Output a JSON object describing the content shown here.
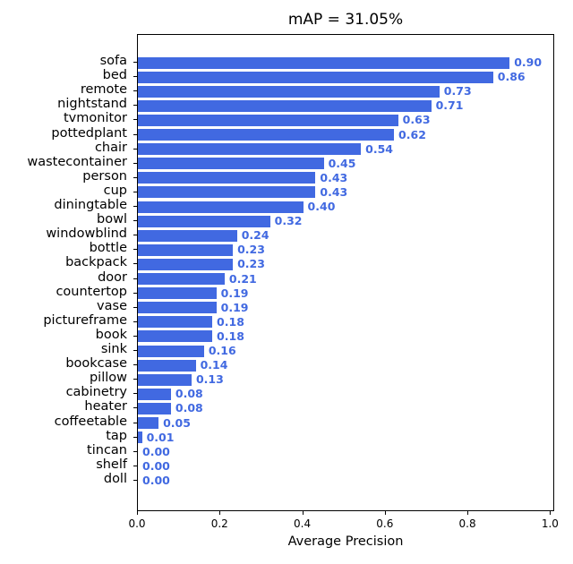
{
  "chart_data": {
    "type": "bar",
    "orientation": "horizontal",
    "title": "mAP = 31.05%",
    "xlabel": "Average Precision",
    "ylabel": "",
    "xlim": [
      0.0,
      1.01
    ],
    "xticks": [
      "0.0",
      "0.2",
      "0.4",
      "0.6",
      "0.8",
      "1.0"
    ],
    "grid": false,
    "legend": null,
    "bar_color": "#4169e1",
    "label_color": "#4169e1",
    "categories": [
      "sofa",
      "bed",
      "remote",
      "nightstand",
      "tvmonitor",
      "pottedplant",
      "chair",
      "wastecontainer",
      "person",
      "cup",
      "diningtable",
      "bowl",
      "windowblind",
      "bottle",
      "backpack",
      "door",
      "countertop",
      "vase",
      "pictureframe",
      "book",
      "sink",
      "bookcase",
      "pillow",
      "cabinetry",
      "heater",
      "coffeetable",
      "tap",
      "tincan",
      "shelf",
      "doll"
    ],
    "values": [
      0.9,
      0.86,
      0.73,
      0.71,
      0.63,
      0.62,
      0.54,
      0.45,
      0.43,
      0.43,
      0.4,
      0.32,
      0.24,
      0.23,
      0.23,
      0.21,
      0.19,
      0.19,
      0.18,
      0.18,
      0.16,
      0.14,
      0.13,
      0.08,
      0.08,
      0.05,
      0.01,
      0.0,
      0.0,
      0.0
    ],
    "value_labels": [
      "0.90",
      "0.86",
      "0.73",
      "0.71",
      "0.63",
      "0.62",
      "0.54",
      "0.45",
      "0.43",
      "0.43",
      "0.40",
      "0.32",
      "0.24",
      "0.23",
      "0.23",
      "0.21",
      "0.19",
      "0.19",
      "0.18",
      "0.18",
      "0.16",
      "0.14",
      "0.13",
      "0.08",
      "0.08",
      "0.05",
      "0.01",
      "0.00",
      "0.00",
      "0.00"
    ]
  }
}
